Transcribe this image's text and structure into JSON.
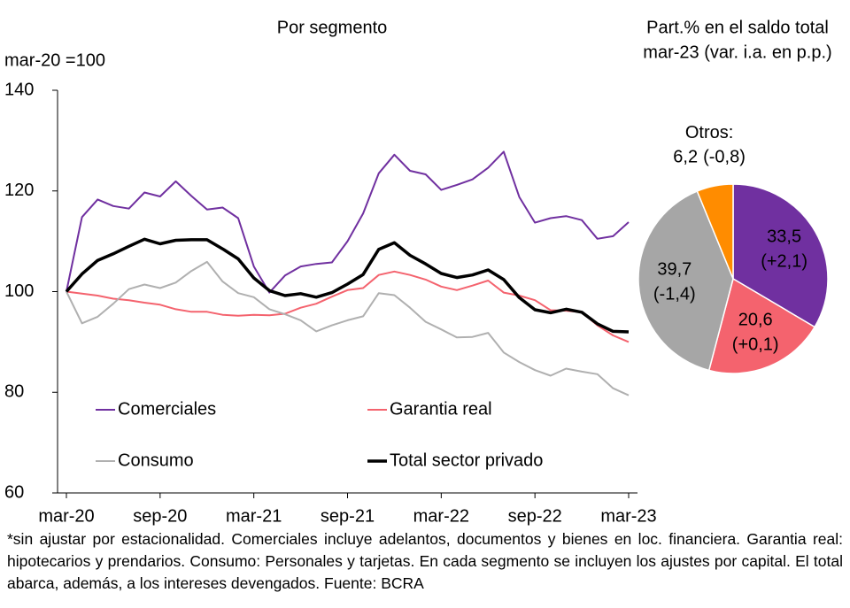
{
  "chart_data": [
    {
      "type": "line",
      "title": "Por segmento",
      "ylabel": "mar-20 =100",
      "categories": [
        "mar-20",
        null,
        null,
        null,
        null,
        null,
        "sep-20",
        null,
        null,
        null,
        null,
        null,
        "mar-21",
        null,
        null,
        null,
        null,
        null,
        "sep-21",
        null,
        null,
        null,
        null,
        null,
        "mar-22",
        null,
        null,
        null,
        null,
        null,
        "sep-22",
        null,
        null,
        null,
        null,
        null,
        "mar-23"
      ],
      "ylim": [
        60,
        140
      ],
      "yticks": [
        60,
        80,
        100,
        120,
        140
      ],
      "grid": false,
      "legend": "lower center",
      "series": [
        {
          "name": "Comerciales",
          "color": "#7030a0",
          "values": [
            100,
            114.8,
            118.3,
            117,
            116.5,
            119.7,
            118.9,
            121.9,
            119,
            116.3,
            116.7,
            114.6,
            105,
            99.8,
            103.2,
            105,
            105.5,
            105.8,
            110,
            115.5,
            123.5,
            127.2,
            124,
            123.3,
            120.2,
            121.2,
            122.3,
            124.6,
            127.8,
            118.8,
            113.7,
            114.6,
            115,
            114.2,
            110.5,
            111,
            113.8
          ]
        },
        {
          "name": "Garantia real",
          "color": "#f4636e",
          "values": [
            100,
            99.6,
            99.2,
            98.6,
            98.3,
            97.8,
            97.4,
            96.5,
            96.0,
            96.0,
            95.4,
            95.2,
            95.4,
            95.3,
            95.6,
            96.8,
            97.6,
            99,
            100.3,
            100.7,
            103.3,
            104,
            103.3,
            102.4,
            101,
            100.3,
            101.2,
            102.2,
            99.8,
            99.2,
            98.3,
            96.3,
            96.2,
            95.9,
            93.3,
            91.3,
            90.0
          ]
        },
        {
          "name": "Consumo",
          "color": "#b0b0b0",
          "values": [
            100,
            93.7,
            95,
            97.6,
            100.5,
            101.4,
            100.7,
            101.8,
            104.1,
            105.9,
            102,
            99.7,
            98.9,
            96.5,
            95.5,
            94.3,
            92.1,
            93.3,
            94.3,
            95.1,
            99.7,
            99.3,
            96.8,
            94,
            92.5,
            90.9,
            91,
            91.8,
            87.9,
            86,
            84.4,
            83.3,
            84.7,
            84.1,
            83.6,
            80.8,
            79.4
          ]
        },
        {
          "name": "Total sector privado",
          "color": "#000000",
          "values": [
            100,
            103.5,
            106.2,
            107.5,
            109,
            110.4,
            109.5,
            110.2,
            110.3,
            110.3,
            108.5,
            106.5,
            102.7,
            100.2,
            99.2,
            99.6,
            98.9,
            99.8,
            101.5,
            103.4,
            108.4,
            109.7,
            107.2,
            105.5,
            103.6,
            102.8,
            103.3,
            104.3,
            102.4,
            98.8,
            96.4,
            95.8,
            96.5,
            95.9,
            93.6,
            92.1,
            92.0
          ]
        }
      ]
    },
    {
      "type": "pie",
      "title": "Part.% en el saldo total",
      "subtitle": "mar-23 (var. i.a. en p.p.)",
      "labels": [
        null,
        null,
        null,
        "Otros:"
      ],
      "values": [
        33.5,
        20.6,
        39.7,
        6.2
      ],
      "value_labels": [
        "33,5",
        "20,6",
        "39,7",
        "6,2"
      ],
      "changes": [
        2.1,
        0.1,
        -1.4,
        -0.8
      ],
      "change_labels": [
        "(+2,1)",
        "(+0,1)",
        "(-1,4)",
        "(-0,8)"
      ],
      "colors": [
        "#7030a0",
        "#f4636e",
        "#a6a6a6",
        "#ff8c00"
      ]
    }
  ],
  "footnote": "*sin ajustar por estacionalidad. Comerciales incluye adelantos, documentos y bienes en loc. financiera. Garantia real: hipotecarios y prendarios. Consumo: Personales y tarjetas. En cada segmento se incluyen los ajustes por capital. El total abarca, además, a los intereses devengados. Fuente: BCRA"
}
